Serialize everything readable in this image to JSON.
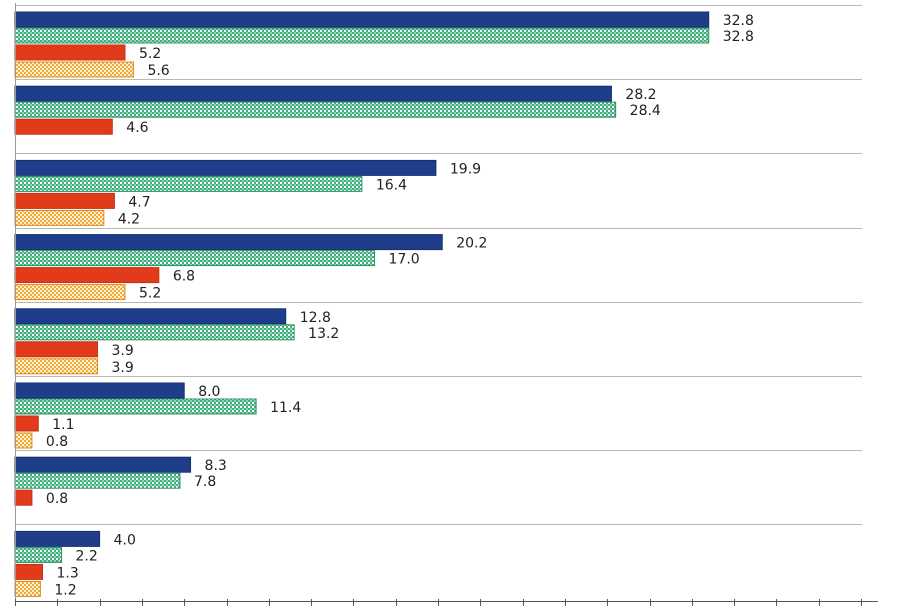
{
  "chart_data": {
    "type": "bar",
    "orientation": "horizontal",
    "title": "",
    "xlabel": "",
    "ylabel": "",
    "xlim": [
      0,
      40
    ],
    "x_tick_step": 2,
    "grid": "horizontal group separators",
    "legend": "none",
    "groups": [
      "",
      "",
      "",
      "",
      "",
      "",
      "",
      ""
    ],
    "series": [
      {
        "name": "series-1",
        "color": "#1f3e8a",
        "pattern": "solid",
        "values": [
          32.8,
          28.2,
          19.9,
          20.2,
          12.8,
          8.0,
          8.3,
          4.0
        ]
      },
      {
        "name": "series-2",
        "color": "#3dae7c",
        "pattern": "fine-checker",
        "values": [
          32.8,
          28.4,
          16.4,
          17.0,
          13.2,
          11.4,
          7.8,
          2.2
        ]
      },
      {
        "name": "series-3",
        "color": "#e23b1c",
        "pattern": "solid",
        "values": [
          5.2,
          4.6,
          4.7,
          6.8,
          3.9,
          1.1,
          0.8,
          1.3
        ]
      },
      {
        "name": "series-4",
        "color": "#f3a93a",
        "pattern": "checker",
        "values": [
          5.6,
          null,
          4.2,
          5.2,
          3.9,
          0.8,
          null,
          1.2
        ]
      }
    ],
    "labels": [
      [
        "32.8",
        "32.8",
        "5.2",
        "5.6"
      ],
      [
        "28.2",
        "28.4",
        "4.6",
        ""
      ],
      [
        "19.9",
        "16.4",
        "4.7",
        "4.2"
      ],
      [
        "20.2",
        "17.0",
        "6.8",
        "5.2"
      ],
      [
        "12.8",
        "13.2",
        "3.9",
        "3.9"
      ],
      [
        "8.0",
        "11.4",
        "1.1",
        "0.8"
      ],
      [
        "8.3",
        "7.8",
        "0.8",
        ""
      ],
      [
        "4.0",
        "2.2",
        "1.3",
        "1.2"
      ]
    ]
  }
}
